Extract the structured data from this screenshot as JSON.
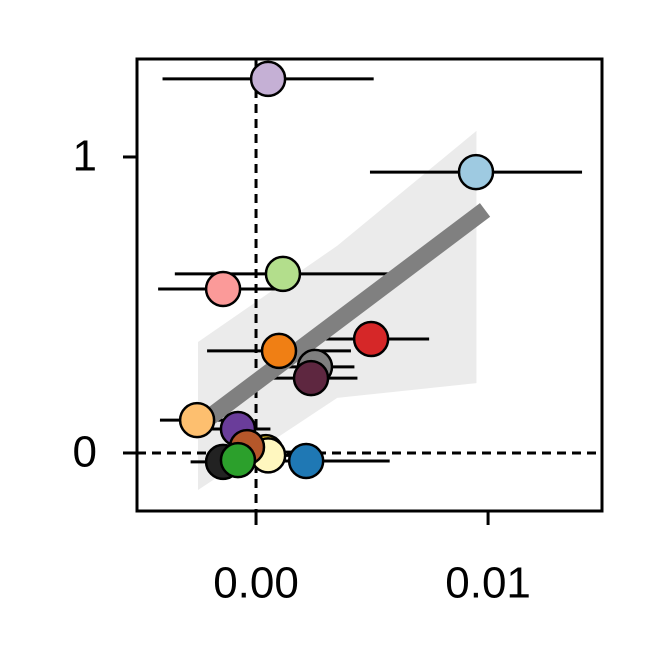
{
  "chart_data": {
    "type": "scatter",
    "x": [
      0.00052,
      0.00948,
      0.00116,
      -0.00142,
      0.00496,
      0.00099,
      0.00254,
      0.00237,
      -0.00254,
      -0.00078,
      0.00043,
      0.00052,
      -0.00039,
      -0.00142,
      -0.00078,
      0.00216
    ],
    "y": [
      1.264,
      0.949,
      0.605,
      0.554,
      0.385,
      0.345,
      0.291,
      0.253,
      0.111,
      0.081,
      0.003,
      -0.008,
      0.02,
      -0.03,
      -0.024,
      -0.027
    ],
    "xerr": [
      0.00455,
      0.00457,
      0.00466,
      0.0028,
      0.0025,
      0.0031,
      0.0017,
      0.002,
      0.0016,
      0.0014,
      0.0015,
      0.0012,
      0.0012,
      0.0014,
      0.0012,
      0.0036
    ],
    "colors": [
      "#c5b0d5",
      "#9ecae1",
      "#b3de8c",
      "#fb9a99",
      "#d62728",
      "#f07f14",
      "#7f7f7f",
      "#5e2740",
      "#fdbf6f",
      "#6a3d9a",
      "#ffd92f",
      "#fff7bf",
      "#b5572a",
      "#222222",
      "#2ca02c",
      "#1f78b4"
    ],
    "fit": {
      "x": [
        -0.0028,
        0.00987
      ],
      "y": [
        0.074,
        0.821
      ],
      "color": "#808080"
    },
    "band": {
      "x": [
        -0.0025,
        0.0035,
        0.0095
      ],
      "lower": [
        -0.125,
        0.186,
        0.236
      ],
      "upper": [
        0.375,
        0.7,
        1.088
      ],
      "color": "#ebebeb"
    },
    "reference_lines": {
      "x": 0,
      "y": 0
    },
    "xlim": [
      -0.00513,
      0.01491
    ],
    "ylim": [
      -0.196,
      1.331
    ],
    "xticks": [
      {
        "value": 0,
        "label": "0.00"
      },
      {
        "value": 0.01,
        "label": "0.01"
      }
    ],
    "yticks": [
      0,
      1
    ]
  }
}
